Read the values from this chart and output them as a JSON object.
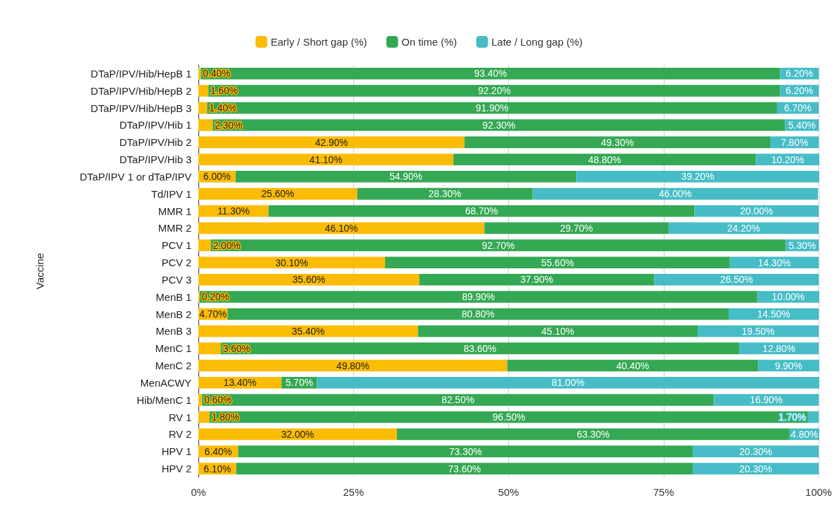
{
  "chart_data": {
    "type": "bar",
    "orientation": "horizontal",
    "stacked": true,
    "ylabel": "Vaccine",
    "categories": [
      "DTaP/IPV/Hib/HepB 1",
      "DTaP/IPV/Hib/HepB 2",
      "DTaP/IPV/Hib/HepB 3",
      "DTaP/IPV/Hib 1",
      "DTaP/IPV/Hib 2",
      "DTaP/IPV/Hib 3",
      "DTaP/IPV 1 or dTaP/IPV",
      "Td/IPV 1",
      "MMR 1",
      "MMR 2",
      "PCV 1",
      "PCV 2",
      "PCV 3",
      "MenB 1",
      "MenB 2",
      "MenB 3",
      "MenC 1",
      "MenC 2",
      "MenACWY",
      "Hib/MenC 1",
      "RV 1",
      "RV 2",
      "HPV 1",
      "HPV 2"
    ],
    "series": [
      {
        "name": "Early / Short gap (%)",
        "color": "#fbbc04",
        "values": [
          0.4,
          1.6,
          1.4,
          2.3,
          42.9,
          41.1,
          6.0,
          25.6,
          11.3,
          46.1,
          2.0,
          30.1,
          35.6,
          0.2,
          4.7,
          35.4,
          3.6,
          49.8,
          13.4,
          0.6,
          1.8,
          32.0,
          6.4,
          6.1
        ],
        "value_labels": [
          "0.40%",
          "1.60%",
          "1.40%",
          "2.30%",
          "42.90%",
          "41.10%",
          "6.00%",
          "25.60%",
          "11.30%",
          "46.10%",
          "2.00%",
          "30.10%",
          "35.60%",
          "0.20%",
          "4.70%",
          "35.40%",
          "3.60%",
          "49.80%",
          "13.40%",
          "0.60%",
          "1.80%",
          "32.00%",
          "6.40%",
          "6.10%"
        ]
      },
      {
        "name": "On time (%)",
        "color": "#34a853",
        "values": [
          93.4,
          92.2,
          91.9,
          92.3,
          49.3,
          48.8,
          54.9,
          28.3,
          68.7,
          29.7,
          92.7,
          55.6,
          37.9,
          89.9,
          80.8,
          45.1,
          83.6,
          40.4,
          5.7,
          82.5,
          96.5,
          63.3,
          73.3,
          73.6
        ],
        "value_labels": [
          "93.40%",
          "92.20%",
          "91.90%",
          "92.30%",
          "49.30%",
          "48.80%",
          "54.90%",
          "28.30%",
          "68.70%",
          "29.70%",
          "92.70%",
          "55.60%",
          "37.90%",
          "89.90%",
          "80.80%",
          "45.10%",
          "83.60%",
          "40.40%",
          "5.70%",
          "82.50%",
          "96.50%",
          "63.30%",
          "73.30%",
          "73.60%"
        ]
      },
      {
        "name": "Late / Long gap (%)",
        "color": "#46bdc6",
        "values": [
          6.2,
          6.2,
          6.7,
          5.4,
          7.8,
          10.2,
          39.2,
          46.0,
          20.0,
          24.2,
          5.3,
          14.3,
          26.5,
          10.0,
          14.5,
          19.5,
          12.8,
          9.9,
          81.0,
          16.9,
          1.7,
          4.8,
          20.3,
          20.3
        ],
        "value_labels": [
          "6.20%",
          "6.20%",
          "6.70%",
          "5.40%",
          "7.80%",
          "10.20%",
          "39.20%",
          "46.00%",
          "20.00%",
          "24.20%",
          "5.30%",
          "14.30%",
          "26.50%",
          "10.00%",
          "14.50%",
          "19.50%",
          "12.80%",
          "9.90%",
          "81.00%",
          "16.90%",
          "1.70%",
          "4.80%",
          "20.30%",
          "20.30%"
        ]
      }
    ],
    "xlim": [
      0,
      100
    ],
    "xticks": [
      {
        "value": 0,
        "label": "0%"
      },
      {
        "value": 25,
        "label": "25%"
      },
      {
        "value": 50,
        "label": "50%"
      },
      {
        "value": 75,
        "label": "75%"
      },
      {
        "value": 100,
        "label": "100%"
      }
    ],
    "grid": "x",
    "legend": "top"
  }
}
